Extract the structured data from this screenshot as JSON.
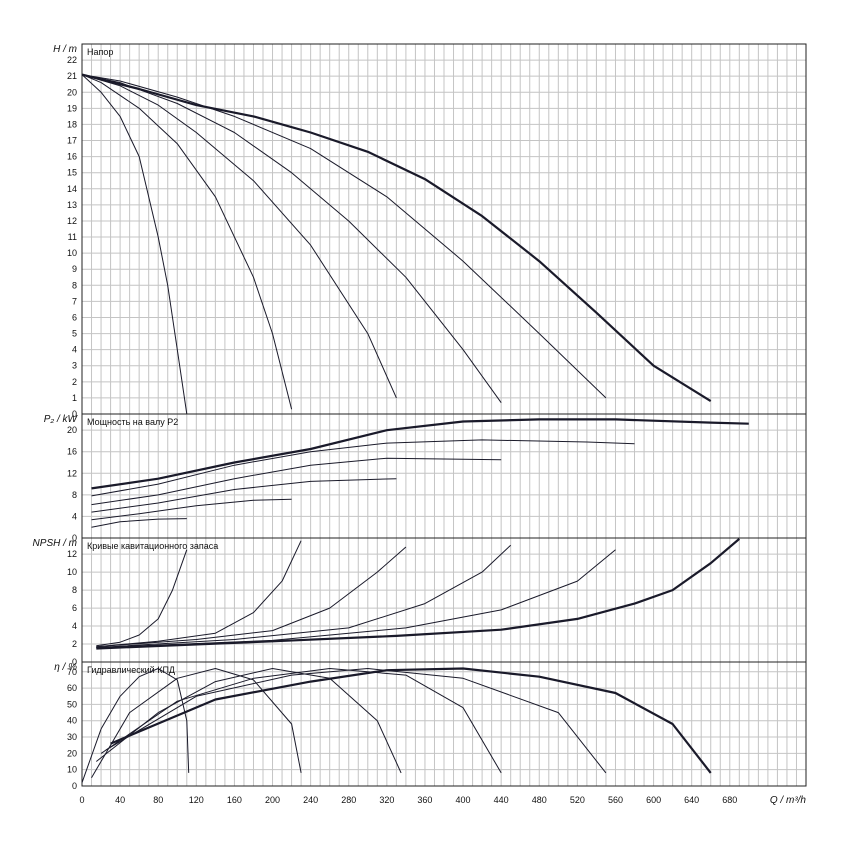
{
  "colors": {
    "grid": "#c4c4c4",
    "frame": "#222222",
    "curve": "#1a1a2a"
  },
  "x_axis": {
    "label": "Q / m³/h",
    "ticks": [
      0,
      40,
      80,
      120,
      160,
      200,
      240,
      280,
      320,
      360,
      400,
      440,
      480,
      520,
      560,
      600,
      640,
      680
    ]
  },
  "chart_data": [
    {
      "type": "line",
      "title": "Напор",
      "ylabel": "H / m",
      "xlim": [
        0,
        760
      ],
      "ylim": [
        0,
        23
      ],
      "y_ticks": [
        0,
        1,
        2,
        3,
        4,
        5,
        6,
        7,
        8,
        9,
        10,
        11,
        12,
        13,
        14,
        15,
        16,
        17,
        18,
        19,
        20,
        21,
        22
      ],
      "series": [
        {
          "values": [
            [
              0,
              21.1
            ],
            [
              20,
              20
            ],
            [
              40,
              18.5
            ],
            [
              60,
              16
            ],
            [
              80,
              11
            ],
            [
              90,
              8
            ],
            [
              100,
              4
            ],
            [
              110,
              0
            ]
          ]
        },
        {
          "values": [
            [
              0,
              21.1
            ],
            [
              20,
              20.6
            ],
            [
              60,
              19
            ],
            [
              100,
              16.8
            ],
            [
              140,
              13.5
            ],
            [
              180,
              8.5
            ],
            [
              200,
              5
            ],
            [
              220,
              0.3
            ]
          ]
        },
        {
          "values": [
            [
              0,
              21.1
            ],
            [
              40,
              20.4
            ],
            [
              80,
              19.2
            ],
            [
              120,
              17.5
            ],
            [
              180,
              14.5
            ],
            [
              240,
              10.5
            ],
            [
              300,
              5
            ],
            [
              330,
              1
            ]
          ]
        },
        {
          "values": [
            [
              0,
              21.1
            ],
            [
              40,
              20.6
            ],
            [
              100,
              19.3
            ],
            [
              160,
              17.5
            ],
            [
              220,
              15
            ],
            [
              280,
              12
            ],
            [
              340,
              8.5
            ],
            [
              400,
              4
            ],
            [
              440,
              0.7
            ]
          ]
        },
        {
          "values": [
            [
              0,
              21.1
            ],
            [
              40,
              20.7
            ],
            [
              100,
              19.7
            ],
            [
              160,
              18.5
            ],
            [
              240,
              16.5
            ],
            [
              320,
              13.5
            ],
            [
              400,
              9.5
            ],
            [
              480,
              5
            ],
            [
              550,
              1
            ]
          ]
        },
        {
          "values": [
            [
              0,
              21.1
            ],
            [
              60,
              20.2
            ],
            [
              120,
              19.2
            ],
            [
              180,
              18.5
            ],
            [
              240,
              17.5
            ],
            [
              300,
              16.3
            ],
            [
              360,
              14.6
            ],
            [
              420,
              12.3
            ],
            [
              480,
              9.5
            ],
            [
              540,
              6.3
            ],
            [
              600,
              3
            ],
            [
              660,
              0.8
            ]
          ]
        }
      ]
    },
    {
      "type": "line",
      "title": "Мощность на валу P2",
      "ylabel": "P₂ / kW",
      "xlim": [
        0,
        760
      ],
      "ylim": [
        0,
        23
      ],
      "y_ticks": [
        0,
        4,
        8,
        12,
        16,
        20
      ],
      "series": [
        {
          "values": [
            [
              10,
              2
            ],
            [
              40,
              3
            ],
            [
              80,
              3.5
            ],
            [
              110,
              3.6
            ]
          ]
        },
        {
          "values": [
            [
              10,
              3.4
            ],
            [
              60,
              4.5
            ],
            [
              120,
              6
            ],
            [
              180,
              7
            ],
            [
              220,
              7.2
            ]
          ]
        },
        {
          "values": [
            [
              10,
              4.8
            ],
            [
              80,
              6.5
            ],
            [
              160,
              9
            ],
            [
              240,
              10.5
            ],
            [
              330,
              11
            ]
          ]
        },
        {
          "values": [
            [
              10,
              6.2
            ],
            [
              80,
              8
            ],
            [
              160,
              11
            ],
            [
              240,
              13.5
            ],
            [
              320,
              14.8
            ],
            [
              440,
              14.5
            ]
          ]
        },
        {
          "values": [
            [
              10,
              7.8
            ],
            [
              80,
              10
            ],
            [
              160,
              13.5
            ],
            [
              240,
              16
            ],
            [
              320,
              17.6
            ],
            [
              420,
              18.2
            ],
            [
              530,
              17.8
            ],
            [
              580,
              17.5
            ]
          ]
        },
        {
          "values": [
            [
              10,
              9.2
            ],
            [
              80,
              11
            ],
            [
              160,
              14
            ],
            [
              240,
              16.5
            ],
            [
              320,
              20
            ],
            [
              400,
              21.6
            ],
            [
              480,
              22
            ],
            [
              560,
              22
            ],
            [
              660,
              21.4
            ],
            [
              700,
              21.2
            ]
          ]
        }
      ]
    },
    {
      "type": "line",
      "title": "Кривые кавитационного запаса",
      "ylabel": "NPSH / m",
      "xlim": [
        0,
        760
      ],
      "ylim": [
        0,
        13.8
      ],
      "y_ticks": [
        0,
        2,
        4,
        6,
        8,
        10,
        12
      ],
      "series": [
        {
          "values": [
            [
              15,
              1.8
            ],
            [
              40,
              2.2
            ],
            [
              60,
              3
            ],
            [
              80,
              4.8
            ],
            [
              95,
              8
            ],
            [
              110,
              12.5
            ]
          ]
        },
        {
          "values": [
            [
              15,
              1.7
            ],
            [
              80,
              2.3
            ],
            [
              140,
              3.2
            ],
            [
              180,
              5.5
            ],
            [
              210,
              9
            ],
            [
              230,
              13.5
            ]
          ]
        },
        {
          "values": [
            [
              15,
              1.7
            ],
            [
              120,
              2.5
            ],
            [
              200,
              3.5
            ],
            [
              260,
              6
            ],
            [
              310,
              10
            ],
            [
              340,
              12.8
            ]
          ]
        },
        {
          "values": [
            [
              15,
              1.6
            ],
            [
              160,
              2.5
            ],
            [
              280,
              3.8
            ],
            [
              360,
              6.5
            ],
            [
              420,
              10
            ],
            [
              450,
              13
            ]
          ]
        },
        {
          "values": [
            [
              15,
              1.6
            ],
            [
              200,
              2.4
            ],
            [
              340,
              3.8
            ],
            [
              440,
              5.8
            ],
            [
              520,
              9
            ],
            [
              560,
              12.5
            ]
          ]
        },
        {
          "values": [
            [
              15,
              1.5
            ],
            [
              200,
              2.3
            ],
            [
              330,
              2.9
            ],
            [
              440,
              3.6
            ],
            [
              520,
              4.8
            ],
            [
              580,
              6.5
            ],
            [
              620,
              8
            ],
            [
              660,
              11
            ],
            [
              690,
              13.7
            ]
          ]
        }
      ]
    },
    {
      "type": "line",
      "title": "Гидравлический КПД",
      "ylabel": "η / %",
      "xlim": [
        0,
        760
      ],
      "ylim": [
        0,
        76
      ],
      "y_ticks": [
        0,
        10,
        20,
        30,
        40,
        50,
        60,
        70
      ],
      "series": [
        {
          "values": [
            [
              0,
              2
            ],
            [
              20,
              35
            ],
            [
              40,
              55
            ],
            [
              60,
              67
            ],
            [
              80,
              72
            ],
            [
              100,
              65
            ],
            [
              110,
              40
            ],
            [
              112,
              8
            ]
          ]
        },
        {
          "values": [
            [
              10,
              5
            ],
            [
              50,
              45
            ],
            [
              100,
              66
            ],
            [
              140,
              72
            ],
            [
              180,
              65
            ],
            [
              220,
              38
            ],
            [
              230,
              8
            ]
          ]
        },
        {
          "values": [
            [
              15,
              15
            ],
            [
              80,
              45
            ],
            [
              140,
              64
            ],
            [
              200,
              72
            ],
            [
              260,
              66
            ],
            [
              310,
              40
            ],
            [
              335,
              8
            ]
          ]
        },
        {
          "values": [
            [
              20,
              20
            ],
            [
              100,
              52
            ],
            [
              180,
              66
            ],
            [
              260,
              72
            ],
            [
              340,
              68
            ],
            [
              400,
              48
            ],
            [
              440,
              8
            ]
          ]
        },
        {
          "values": [
            [
              25,
              22
            ],
            [
              120,
              55
            ],
            [
              220,
              68
            ],
            [
              300,
              72
            ],
            [
              400,
              66
            ],
            [
              500,
              45
            ],
            [
              550,
              8
            ]
          ]
        },
        {
          "values": [
            [
              30,
              26
            ],
            [
              140,
              53
            ],
            [
              240,
              64
            ],
            [
              320,
              71
            ],
            [
              400,
              72
            ],
            [
              480,
              67
            ],
            [
              560,
              57
            ],
            [
              620,
              38
            ],
            [
              660,
              8
            ]
          ]
        }
      ]
    }
  ]
}
